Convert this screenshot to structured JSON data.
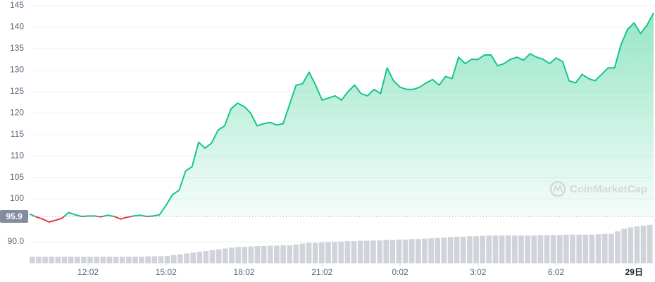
{
  "chart_data": {
    "type": "line",
    "values": [
      96.5,
      95.8,
      95.3,
      94.6,
      95.0,
      95.5,
      96.8,
      96.3,
      95.9,
      96.0,
      96.0,
      95.8,
      96.2,
      95.9,
      95.3,
      95.7,
      96.0,
      96.2,
      95.9,
      96.0,
      96.3,
      98.5,
      101,
      102,
      106.5,
      107.5,
      113.2,
      111.8,
      113,
      116,
      117,
      121,
      122.3,
      121.5,
      120,
      117,
      117.5,
      117.8,
      117.2,
      117.5,
      122,
      126.5,
      126.8,
      129.5,
      126.5,
      123,
      123.5,
      124,
      123,
      125,
      126.5,
      124.5,
      124,
      125.5,
      124.5,
      130.5,
      127.5,
      126,
      125.5,
      125.5,
      126,
      127,
      127.8,
      126.5,
      128.5,
      128,
      133,
      131.5,
      132.5,
      132.5,
      133.5,
      133.5,
      131,
      131.5,
      132.5,
      133,
      132.3,
      133.8,
      133,
      132.5,
      131.5,
      132.8,
      132,
      127.5,
      127,
      129,
      128,
      127.5,
      129,
      130.5,
      130.5,
      136,
      139.5,
      141,
      138.5,
      140.5,
      143.3
    ],
    "volume": [
      16,
      16,
      16,
      16,
      16,
      16,
      16,
      16,
      16,
      16,
      16,
      16,
      16,
      16,
      16,
      16,
      16,
      16,
      17,
      17,
      17,
      18,
      20,
      22,
      24,
      26,
      28,
      30,
      32,
      34,
      36,
      38,
      40,
      40,
      41,
      42,
      42,
      43,
      43,
      44,
      44,
      46,
      48,
      50,
      50,
      51,
      52,
      52,
      53,
      54,
      54,
      55,
      55,
      56,
      56,
      57,
      57,
      58,
      58,
      59,
      59,
      60,
      61,
      62,
      63,
      64,
      65,
      65,
      66,
      66,
      67,
      68,
      68,
      68,
      68,
      68,
      68,
      68,
      68,
      69,
      69,
      69,
      69,
      70,
      70,
      70,
      70,
      70,
      71,
      72,
      72,
      78,
      84,
      88,
      90,
      92,
      94
    ],
    "color": "#16c784",
    "below_color": "#ea3943",
    "volume_color": "#d0d3d9",
    "reference_value": 95.9,
    "ylim": [
      85,
      145
    ],
    "yticks": [
      145,
      140,
      135,
      130,
      125,
      120,
      115,
      110,
      105,
      100,
      {
        "value": 90,
        "label": "90.0"
      }
    ],
    "xticks": [
      {
        "value": 9,
        "label": "12:02"
      },
      {
        "value": 21,
        "label": "15:02"
      },
      {
        "value": 33,
        "label": "18:02"
      },
      {
        "value": 45,
        "label": "21:02"
      },
      {
        "value": 57,
        "label": "0:02"
      },
      {
        "value": 69,
        "label": "3:02"
      },
      {
        "value": 81,
        "label": "6:02"
      },
      {
        "value": 93,
        "label": "29日"
      }
    ],
    "grid": true,
    "watermark": "CoinMarketCap"
  }
}
